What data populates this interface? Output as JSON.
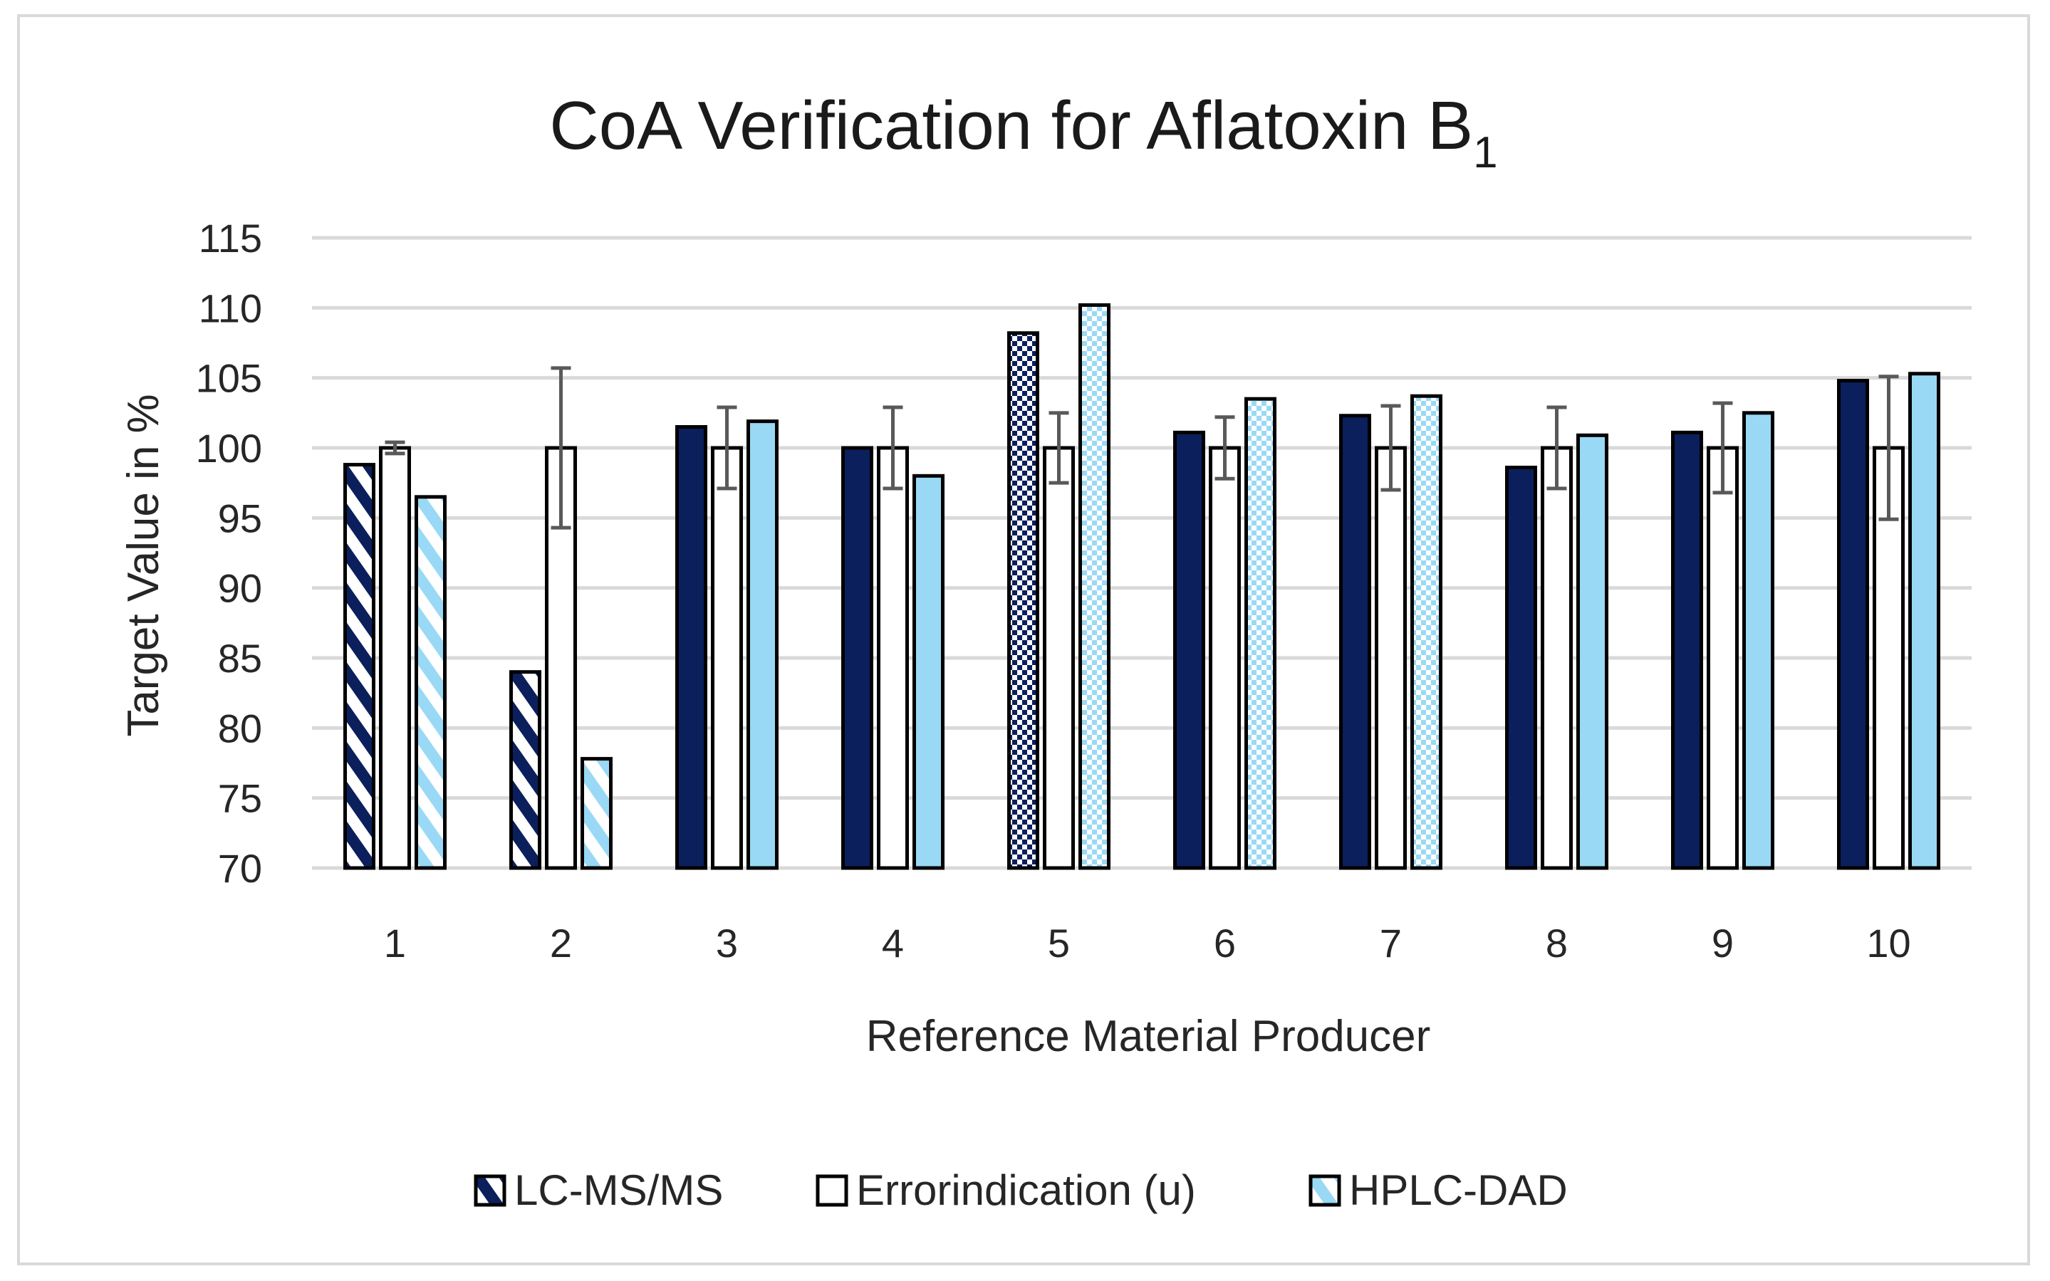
{
  "chart_data": {
    "type": "bar",
    "title": "CoA Verification for Aflatoxin B",
    "title_subscript": "1",
    "xlabel": "Reference Material Producer",
    "ylabel": "Target Value in %",
    "ylim": [
      70,
      115
    ],
    "yticks": [
      70,
      75,
      80,
      85,
      90,
      95,
      100,
      105,
      110,
      115
    ],
    "grid": true,
    "legend_position": "bottom",
    "categories": [
      "1",
      "2",
      "3",
      "4",
      "5",
      "6",
      "7",
      "8",
      "9",
      "10"
    ],
    "series": [
      {
        "name": "LC-MS/MS",
        "color": "#0b1f5c",
        "values": [
          98.8,
          84.0,
          101.5,
          100.0,
          108.2,
          101.1,
          102.3,
          98.6,
          101.1,
          104.8
        ],
        "patterns": [
          "stripe",
          "stripe",
          "solid",
          "solid",
          "check",
          "solid",
          "solid",
          "solid",
          "solid",
          "solid"
        ]
      },
      {
        "name": "Errorindication (u)",
        "color": "#ffffff",
        "values": [
          100,
          100,
          100,
          100,
          100,
          100,
          100,
          100,
          100,
          100
        ],
        "error": [
          0.4,
          5.7,
          2.9,
          2.9,
          2.5,
          2.2,
          3.0,
          2.9,
          3.2,
          5.1
        ],
        "patterns": [
          "solid",
          "solid",
          "solid",
          "solid",
          "solid",
          "solid",
          "solid",
          "solid",
          "solid",
          "solid"
        ]
      },
      {
        "name": "HPLC-DAD",
        "color": "#99d9f5",
        "values": [
          96.5,
          77.8,
          101.9,
          98.0,
          110.2,
          103.5,
          103.7,
          100.9,
          102.5,
          105.3
        ],
        "patterns": [
          "stripe",
          "stripe",
          "solid",
          "solid",
          "check",
          "check",
          "check",
          "solid",
          "solid",
          "solid"
        ]
      }
    ]
  }
}
